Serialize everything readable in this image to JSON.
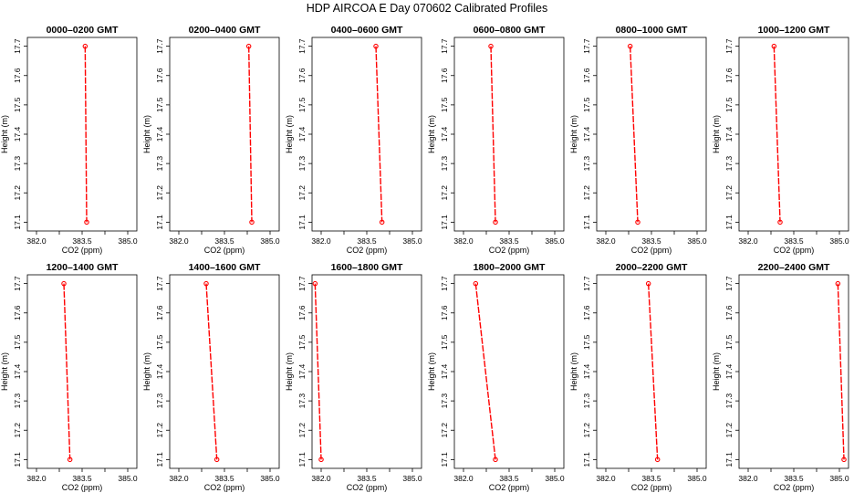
{
  "page": {
    "title": "HDP  AIRCOA E  Day 070602  Calibrated Profiles"
  },
  "colors": {
    "series": "#ff0000",
    "axis": "#000000"
  },
  "chart_data": [
    {
      "type": "line",
      "title": "0000–0200 GMT",
      "xlabel": "CO2 (ppm)",
      "ylabel": "Height (m)",
      "xlim": [
        381.7,
        385.3
      ],
      "ylim": [
        17.07,
        17.73
      ],
      "xticks": [
        "382.0",
        "383.5",
        "385.0"
      ],
      "yticks": [
        "17.1",
        "17.2",
        "17.3",
        "17.4",
        "17.5",
        "17.6",
        "17.7"
      ],
      "series": [
        {
          "x": [
            383.6,
            383.65
          ],
          "y": [
            17.7,
            17.1
          ]
        }
      ]
    },
    {
      "type": "line",
      "title": "0200–0400 GMT",
      "xlabel": "CO2 (ppm)",
      "ylabel": "Height (m)",
      "xlim": [
        381.7,
        385.3
      ],
      "ylim": [
        17.07,
        17.73
      ],
      "xticks": [
        "382.0",
        "383.5",
        "385.0"
      ],
      "yticks": [
        "17.1",
        "17.2",
        "17.3",
        "17.4",
        "17.5",
        "17.6",
        "17.7"
      ],
      "series": [
        {
          "x": [
            384.3,
            384.4
          ],
          "y": [
            17.7,
            17.1
          ]
        }
      ]
    },
    {
      "type": "line",
      "title": "0400–0600 GMT",
      "xlabel": "CO2 (ppm)",
      "ylabel": "Height (m)",
      "xlim": [
        381.7,
        385.3
      ],
      "ylim": [
        17.07,
        17.73
      ],
      "xticks": [
        "382.0",
        "383.5",
        "385.0"
      ],
      "yticks": [
        "17.1",
        "17.2",
        "17.3",
        "17.4",
        "17.5",
        "17.6",
        "17.7"
      ],
      "series": [
        {
          "x": [
            383.8,
            384.0
          ],
          "y": [
            17.7,
            17.1
          ]
        }
      ]
    },
    {
      "type": "line",
      "title": "0600–0800 GMT",
      "xlabel": "CO2 (ppm)",
      "ylabel": "Height (m)",
      "xlim": [
        381.7,
        385.3
      ],
      "ylim": [
        17.07,
        17.73
      ],
      "xticks": [
        "382.0",
        "383.5",
        "385.0"
      ],
      "yticks": [
        "17.1",
        "17.2",
        "17.3",
        "17.4",
        "17.5",
        "17.6",
        "17.7"
      ],
      "series": [
        {
          "x": [
            382.9,
            383.05
          ],
          "y": [
            17.7,
            17.1
          ]
        }
      ]
    },
    {
      "type": "line",
      "title": "0800–1000 GMT",
      "xlabel": "CO2 (ppm)",
      "ylabel": "Height (m)",
      "xlim": [
        381.7,
        385.3
      ],
      "ylim": [
        17.07,
        17.73
      ],
      "xticks": [
        "382.0",
        "383.5",
        "385.0"
      ],
      "yticks": [
        "17.1",
        "17.2",
        "17.3",
        "17.4",
        "17.5",
        "17.6",
        "17.7"
      ],
      "series": [
        {
          "x": [
            382.8,
            383.05
          ],
          "y": [
            17.7,
            17.1
          ]
        }
      ]
    },
    {
      "type": "line",
      "title": "1000–1200 GMT",
      "xlabel": "CO2 (ppm)",
      "ylabel": "Height (m)",
      "xlim": [
        381.7,
        385.3
      ],
      "ylim": [
        17.07,
        17.73
      ],
      "xticks": [
        "382.0",
        "383.5",
        "385.0"
      ],
      "yticks": [
        "17.1",
        "17.2",
        "17.3",
        "17.4",
        "17.5",
        "17.6",
        "17.7"
      ],
      "series": [
        {
          "x": [
            382.85,
            383.05
          ],
          "y": [
            17.7,
            17.1
          ]
        }
      ]
    },
    {
      "type": "line",
      "title": "1200–1400 GMT",
      "xlabel": "CO2 (ppm)",
      "ylabel": "Height (m)",
      "xlim": [
        381.7,
        385.3
      ],
      "ylim": [
        17.07,
        17.73
      ],
      "xticks": [
        "382.0",
        "383.5",
        "385.0"
      ],
      "yticks": [
        "17.1",
        "17.2",
        "17.3",
        "17.4",
        "17.5",
        "17.6",
        "17.7"
      ],
      "series": [
        {
          "x": [
            382.9,
            383.1
          ],
          "y": [
            17.7,
            17.1
          ]
        }
      ]
    },
    {
      "type": "line",
      "title": "1400–1600 GMT",
      "xlabel": "CO2 (ppm)",
      "ylabel": "Height (m)",
      "xlim": [
        381.7,
        385.3
      ],
      "ylim": [
        17.07,
        17.73
      ],
      "xticks": [
        "382.0",
        "383.5",
        "385.0"
      ],
      "yticks": [
        "17.1",
        "17.2",
        "17.3",
        "17.4",
        "17.5",
        "17.6",
        "17.7"
      ],
      "series": [
        {
          "x": [
            382.9,
            383.25
          ],
          "y": [
            17.7,
            17.1
          ]
        }
      ]
    },
    {
      "type": "line",
      "title": "1600–1800 GMT",
      "xlabel": "CO2 (ppm)",
      "ylabel": "Height (m)",
      "xlim": [
        381.7,
        385.3
      ],
      "ylim": [
        17.07,
        17.73
      ],
      "xticks": [
        "382.0",
        "383.5",
        "385.0"
      ],
      "yticks": [
        "17.1",
        "17.2",
        "17.3",
        "17.4",
        "17.5",
        "17.6",
        "17.7"
      ],
      "series": [
        {
          "x": [
            381.8,
            382.0
          ],
          "y": [
            17.7,
            17.1
          ]
        }
      ]
    },
    {
      "type": "line",
      "title": "1800–2000 GMT",
      "xlabel": "CO2 (ppm)",
      "ylabel": "Height (m)",
      "xlim": [
        381.7,
        385.3
      ],
      "ylim": [
        17.07,
        17.73
      ],
      "xticks": [
        "382.0",
        "383.5",
        "385.0"
      ],
      "yticks": [
        "17.1",
        "17.2",
        "17.3",
        "17.4",
        "17.5",
        "17.6",
        "17.7"
      ],
      "series": [
        {
          "x": [
            382.4,
            383.05
          ],
          "y": [
            17.7,
            17.1
          ]
        }
      ]
    },
    {
      "type": "line",
      "title": "2000–2200 GMT",
      "xlabel": "CO2 (ppm)",
      "ylabel": "Height (m)",
      "xlim": [
        381.7,
        385.3
      ],
      "ylim": [
        17.07,
        17.73
      ],
      "xticks": [
        "382.0",
        "383.5",
        "385.0"
      ],
      "yticks": [
        "17.1",
        "17.2",
        "17.3",
        "17.4",
        "17.5",
        "17.6",
        "17.7"
      ],
      "series": [
        {
          "x": [
            383.4,
            383.7
          ],
          "y": [
            17.7,
            17.1
          ]
        }
      ]
    },
    {
      "type": "line",
      "title": "2200–2400 GMT",
      "xlabel": "CO2 (ppm)",
      "ylabel": "Height (m)",
      "xlim": [
        381.7,
        385.3
      ],
      "ylim": [
        17.07,
        17.73
      ],
      "xticks": [
        "382.0",
        "383.5",
        "385.0"
      ],
      "yticks": [
        "17.1",
        "17.2",
        "17.3",
        "17.4",
        "17.5",
        "17.6",
        "17.7"
      ],
      "series": [
        {
          "x": [
            384.95,
            385.15
          ],
          "y": [
            17.7,
            17.1
          ]
        }
      ]
    }
  ]
}
